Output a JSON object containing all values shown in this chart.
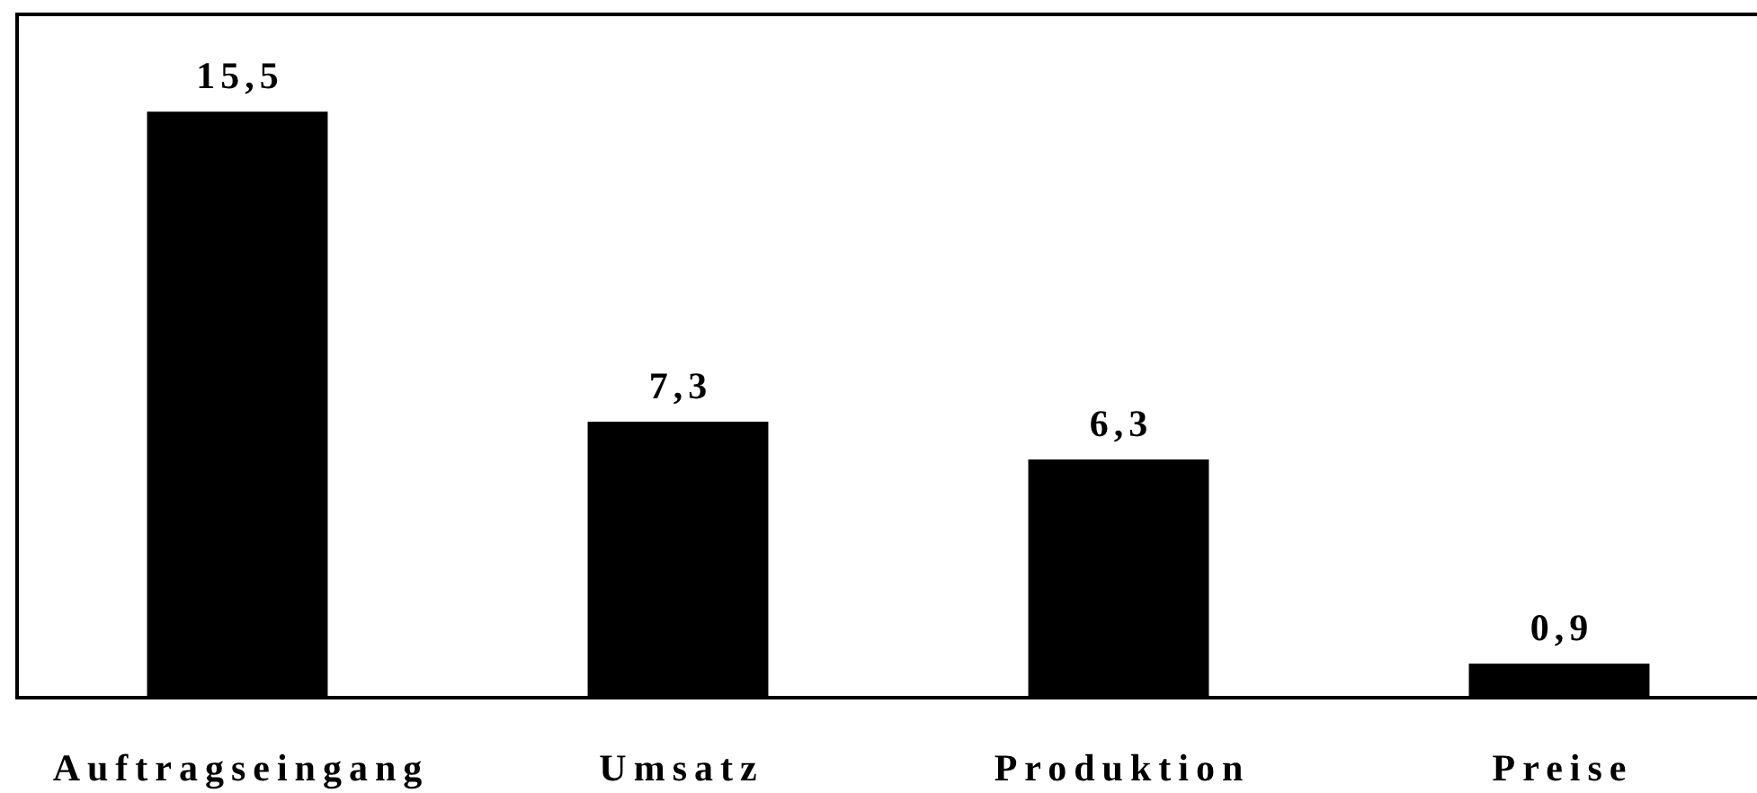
{
  "chart_data": {
    "type": "bar",
    "categories": [
      "Auftragseingang",
      "Umsatz",
      "Produktion",
      "Preise"
    ],
    "values": [
      15.5,
      7.3,
      6.3,
      0.9
    ],
    "value_labels": [
      "15,5",
      "7,3",
      "6,3",
      "0,9"
    ],
    "color": "#000000"
  }
}
